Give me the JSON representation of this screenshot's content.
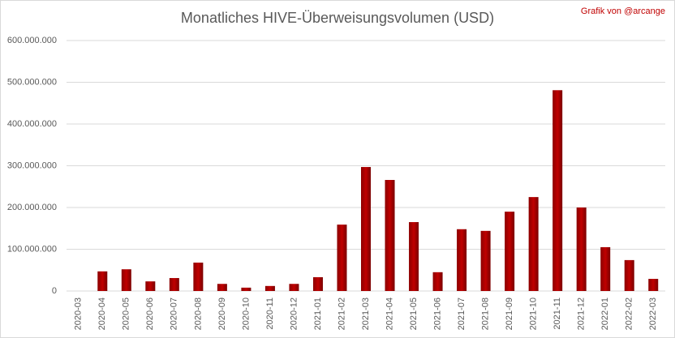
{
  "chart_data": {
    "type": "bar",
    "title": "Monatliches HIVE-Überweisungsvolumen (USD)",
    "annotation": "Grafik von @arcange",
    "categories": [
      "2020-03",
      "2020-04",
      "2020-05",
      "2020-06",
      "2020-07",
      "2020-08",
      "2020-09",
      "2020-10",
      "2020-11",
      "2020-12",
      "2021-01",
      "2021-02",
      "2021-03",
      "2021-04",
      "2021-05",
      "2021-06",
      "2021-07",
      "2021-08",
      "2021-09",
      "2021-10",
      "2021-11",
      "2021-12",
      "2022-01",
      "2022-02",
      "2022-03"
    ],
    "values": [
      0,
      47000000,
      52000000,
      23000000,
      31000000,
      68000000,
      17000000,
      8000000,
      12000000,
      17000000,
      33000000,
      159000000,
      297000000,
      266000000,
      165000000,
      45000000,
      148000000,
      144000000,
      190000000,
      225000000,
      481000000,
      200000000,
      105000000,
      74000000,
      29000000
    ],
    "color": "#c00000",
    "ylim": [
      0,
      600000000
    ],
    "yticks": [
      0,
      {
        "value": 100000000,
        "label": "100.000.000"
      },
      {
        "value": 200000000,
        "label": "200.000.000"
      },
      {
        "value": 300000000,
        "label": "300.000.000"
      },
      {
        "value": 400000000,
        "label": "400.000.000"
      },
      {
        "value": 500000000,
        "label": "500.000.000"
      },
      {
        "value": 600000000,
        "label": "600.000.000"
      }
    ],
    "grid": true
  }
}
